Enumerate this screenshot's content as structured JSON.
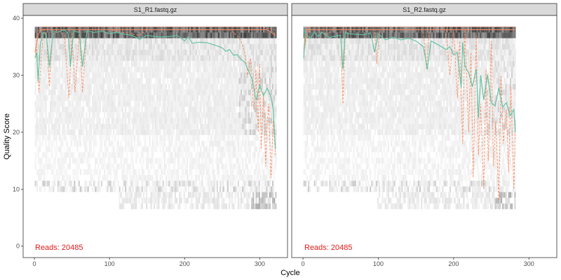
{
  "chart_data": {
    "type": "line",
    "ylabel": "Quality Score",
    "xlabel": "Cycle",
    "ylim": [
      -2,
      40.5
    ],
    "yticks": [
      0,
      10,
      20,
      30,
      40
    ],
    "xticks": [
      0,
      100,
      200,
      300
    ],
    "grid": false,
    "colors": {
      "mean": "#66c2a5",
      "quartile": "#fc8d62",
      "reads_text": "#e31a1c",
      "strip": "#d9d9d9"
    },
    "panels": [
      {
        "title": "S1_R1.fastq.gz",
        "xlim": [
          -15,
          337
        ],
        "reads_label": "Reads:  20485",
        "max_cycle": 321,
        "mean_quality": {
          "cycle": [
            1,
            3,
            5,
            8,
            12,
            16,
            20,
            25,
            30,
            40,
            45,
            48,
            52,
            60,
            64,
            70,
            80,
            90,
            100,
            110,
            120,
            130,
            140,
            150,
            160,
            170,
            180,
            190,
            200,
            205,
            210,
            220,
            230,
            240,
            250,
            255,
            260,
            265,
            270,
            275,
            280,
            285,
            290,
            295,
            300,
            305,
            310,
            315,
            318,
            321
          ],
          "value": [
            33,
            34,
            29,
            35.5,
            37.5,
            37,
            31.5,
            37.8,
            37.5,
            38,
            37.3,
            31.5,
            37.8,
            37.5,
            31.5,
            37.8,
            37.5,
            37.8,
            37.3,
            37.5,
            37.2,
            37,
            36.3,
            37,
            36.8,
            36.7,
            36.8,
            37,
            36,
            36.8,
            35.6,
            35.8,
            35.7,
            35.3,
            34.8,
            34.2,
            34.5,
            33.5,
            33.6,
            32.8,
            32.3,
            30.8,
            29.3,
            25.6,
            28.2,
            26.4,
            27.7,
            26.2,
            23.9,
            17
          ]
        },
        "median_quality": {
          "cycle": [
            1,
            5,
            8,
            30,
            100,
            200,
            270,
            280,
            290,
            300,
            310,
            321
          ],
          "value": [
            34,
            37,
            38,
            38,
            38,
            38,
            38,
            38,
            38,
            38,
            38,
            37
          ]
        },
        "upper_quartile": {
          "cycle": [
            1,
            5,
            10,
            30,
            100,
            200,
            300,
            321
          ],
          "value": [
            34,
            38,
            38.5,
            38.5,
            38.5,
            38.5,
            38.5,
            38
          ]
        },
        "lower_quartile": {
          "cycle": [
            1,
            3,
            6,
            12,
            16,
            20,
            24,
            30,
            40,
            46,
            50,
            54,
            60,
            64,
            70,
            100,
            140,
            150,
            200,
            240,
            260,
            270,
            275,
            280,
            284,
            288,
            292,
            295,
            298,
            300,
            302,
            305,
            308,
            310,
            312,
            315,
            318,
            321
          ],
          "value": [
            33,
            35,
            27,
            38,
            37,
            28,
            37,
            38,
            37,
            26,
            37.5,
            27,
            38,
            27,
            38,
            38,
            37,
            38,
            38,
            38,
            38,
            37,
            36,
            34,
            30,
            33,
            24,
            31,
            20,
            32,
            17,
            27,
            14,
            22,
            25,
            12,
            22,
            16
          ]
        }
      },
      {
        "title": "S1_R2.fastq.gz",
        "xlim": [
          -15,
          337
        ],
        "reads_label": "Reads:  20485",
        "max_cycle": 282,
        "mean_quality": {
          "cycle": [
            1,
            3,
            5,
            10,
            15,
            20,
            25,
            30,
            35,
            40,
            50,
            53,
            56,
            60,
            70,
            80,
            90,
            95,
            100,
            110,
            120,
            130,
            140,
            150,
            160,
            165,
            170,
            180,
            190,
            195,
            200,
            205,
            210,
            212,
            215,
            220,
            225,
            230,
            233,
            236,
            240,
            245,
            250,
            255,
            260,
            265,
            270,
            275,
            280,
            282
          ],
          "value": [
            33,
            38,
            37,
            36.5,
            37.5,
            36.8,
            37.5,
            37.2,
            36.6,
            36.8,
            37,
            31,
            37.5,
            37.3,
            37.2,
            37.1,
            37.4,
            34,
            37.2,
            36.2,
            36.7,
            36.2,
            36.5,
            36,
            35,
            31,
            36,
            35.3,
            34.5,
            35,
            33.6,
            34,
            27.8,
            35.8,
            31.6,
            30.4,
            28,
            31.1,
            22.5,
            30,
            25.7,
            30.1,
            25.2,
            24.6,
            27.8,
            24.4,
            25.2,
            22.9,
            24,
            20
          ]
        },
        "median_quality": {
          "cycle": [
            1,
            5,
            100,
            200,
            282
          ],
          "value": [
            34,
            38,
            38,
            38,
            38
          ]
        },
        "upper_quartile": {
          "cycle": [
            1,
            5,
            282
          ],
          "value": [
            34,
            38.5,
            38.5
          ]
        },
        "lower_quartile": {
          "cycle": [
            1,
            5,
            10,
            20,
            30,
            40,
            50,
            53,
            56,
            70,
            95,
            98,
            102,
            130,
            160,
            164,
            168,
            190,
            195,
            200,
            205,
            208,
            212,
            215,
            220,
            223,
            226,
            230,
            233,
            236,
            240,
            243,
            246,
            250,
            253,
            256,
            260,
            263,
            266,
            270,
            273,
            276,
            280,
            282
          ],
          "value": [
            34,
            37,
            38,
            38,
            37,
            38,
            38,
            25,
            38,
            38,
            38,
            32,
            38,
            38,
            38,
            31,
            38,
            38,
            30,
            38,
            26,
            36,
            18,
            38,
            20,
            34,
            12,
            37,
            16,
            25,
            10,
            31,
            15,
            36,
            14,
            22,
            8,
            30,
            18,
            24,
            13,
            28,
            10,
            22
          ]
        }
      }
    ]
  }
}
